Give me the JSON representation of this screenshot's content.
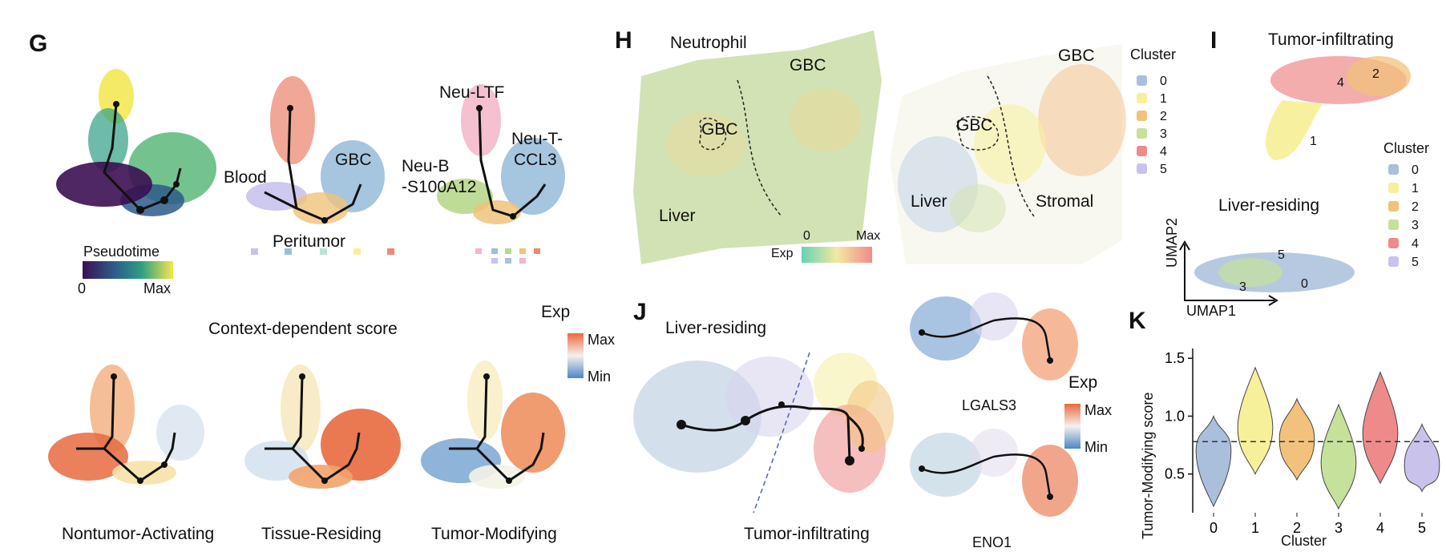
{
  "panel_labels": {
    "g": "G",
    "h": "H",
    "i": "I",
    "j": "J",
    "k": "K"
  },
  "panel_g": {
    "labels": {
      "blood": "Blood",
      "gbc": "GBC",
      "peritumor": "Peritumor",
      "neu_ltf": "Neu-LTF",
      "neu_t": "Neu-T-",
      "ccl3": "CCL3",
      "neu_b": "Neu-B",
      "s100a12": "-S100A12"
    },
    "pseudotime": {
      "title": "Pseudotime",
      "min": "0",
      "max": "Max"
    },
    "context_title": "Context-dependent score",
    "exp": {
      "title": "Exp",
      "max": "Max",
      "min": "Min"
    },
    "scores": {
      "nontumor": "Nontumor-Activating",
      "tissue": "Tissue-Residing",
      "tumor": "Tumor-Modifying"
    }
  },
  "panel_h": {
    "neutrophil": "Neutrophil",
    "gbc": "GBC",
    "liver": "Liver",
    "stromal": "Stromal",
    "exp": {
      "title": "Exp",
      "min": "0",
      "max": "Max"
    },
    "cluster_legend": {
      "title": "Cluster",
      "items": [
        "0",
        "1",
        "2",
        "3",
        "4",
        "5"
      ]
    }
  },
  "panel_i": {
    "tumor_title": "Tumor-infiltrating",
    "liver_title": "Liver-residing",
    "point_labels": {
      "c1": "1",
      "c2": "2",
      "c4": "4",
      "c0": "0",
      "c3": "3",
      "c5": "5"
    },
    "axes": {
      "x": "UMAP1",
      "y": "UMAP2"
    },
    "cluster_legend": {
      "title": "Cluster",
      "items": [
        "0",
        "1",
        "2",
        "3",
        "4",
        "5"
      ]
    }
  },
  "panel_j": {
    "liver_title": "Liver-residing",
    "tumor_title": "Tumor-infiltrating",
    "genes": {
      "lgals3": "LGALS3",
      "eno1": "ENO1"
    },
    "exp": {
      "title": "Exp",
      "max": "Max",
      "min": "Min"
    }
  },
  "colors": {
    "c0": "#a9bfdc",
    "c1": "#f7f09a",
    "c2": "#f2c27c",
    "c3": "#c6e19a",
    "c4": "#ef8a8a",
    "c5": "#c9c3ec"
  },
  "chart_data": {
    "type": "violin",
    "xlabel": "Cluster",
    "ylabel": "Tumor-Modifying score",
    "categories": [
      "0",
      "1",
      "2",
      "3",
      "4",
      "5"
    ],
    "yticks": [
      0.5,
      1.0,
      1.5
    ],
    "ylim": [
      0.2,
      1.55
    ],
    "reference_line": 0.78,
    "series": [
      {
        "category": "0",
        "min": 0.22,
        "max": 1.0,
        "median": 0.7
      },
      {
        "category": "1",
        "min": 0.5,
        "max": 1.42,
        "median": 0.9
      },
      {
        "category": "2",
        "min": 0.45,
        "max": 1.15,
        "median": 0.8
      },
      {
        "category": "3",
        "min": 0.2,
        "max": 1.1,
        "median": 0.6
      },
      {
        "category": "4",
        "min": 0.42,
        "max": 1.38,
        "median": 0.85
      },
      {
        "category": "5",
        "min": 0.35,
        "max": 0.93,
        "median": 0.58
      }
    ]
  }
}
